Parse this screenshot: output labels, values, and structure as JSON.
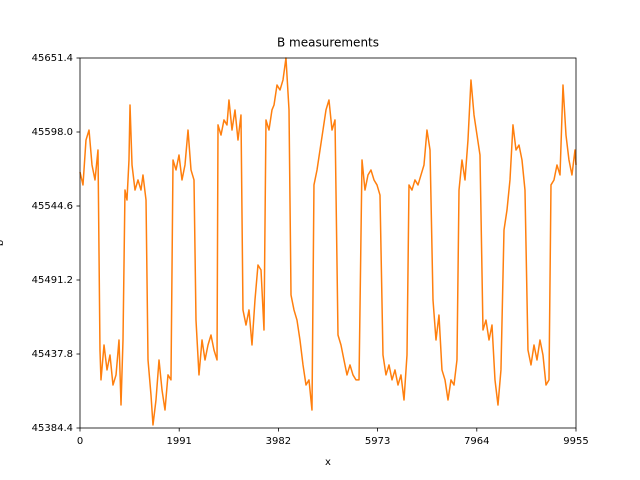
{
  "chart_data": {
    "type": "line",
    "title": "B measurements",
    "x_label": "x",
    "y_label": "b",
    "xlim": [
      0,
      9955
    ],
    "xticks": [
      0,
      1991,
      3982,
      5973,
      7964,
      9955
    ],
    "ylim": [
      45384.4,
      45651.4
    ],
    "yticks": [
      45384.4,
      45437.8,
      45491.2,
      45544.6,
      {
        "value": 45598,
        "label": "45598.0"
      },
      45651.4
    ],
    "color": "#ff7f0e",
    "x": [
      0,
      60,
      120,
      181,
      241,
      301,
      361,
      401,
      421,
      482,
      542,
      602,
      662,
      723,
      783,
      823,
      863,
      903,
      943,
      983,
      1004,
      1044,
      1104,
      1164,
      1224,
      1264,
      1325,
      1365,
      1425,
      1465,
      1525,
      1586,
      1646,
      1706,
      1766,
      1826,
      1867,
      1927,
      1987,
      2047,
      2107,
      2168,
      2228,
      2288,
      2328,
      2388,
      2449,
      2509,
      2569,
      2629,
      2689,
      2750,
      2770,
      2830,
      2890,
      2950,
      2990,
      3051,
      3111,
      3171,
      3231,
      3271,
      3332,
      3392,
      3452,
      3512,
      3572,
      3633,
      3693,
      3733,
      3793,
      3853,
      3894,
      3954,
      4014,
      4074,
      4134,
      4195,
      4235,
      4295,
      4355,
      4415,
      4476,
      4536,
      4596,
      4656,
      4696,
      4757,
      4817,
      4877,
      4937,
      4997,
      5058,
      5118,
      5178,
      5238,
      5298,
      5359,
      5419,
      5479,
      5539,
      5600,
      5660,
      5720,
      5780,
      5840,
      5901,
      5961,
      6021,
      6081,
      6141,
      6202,
      6262,
      6322,
      6382,
      6442,
      6503,
      6563,
      6603,
      6663,
      6723,
      6784,
      6844,
      6904,
      6964,
      7025,
      7085,
      7145,
      7205,
      7265,
      7326,
      7386,
      7446,
      7506,
      7566,
      7607,
      7667,
      7727,
      7787,
      7847,
      7908,
      7968,
      8028,
      8088,
      8148,
      8209,
      8269,
      8329,
      8389,
      8449,
      8510,
      8570,
      8630,
      8690,
      8751,
      8811,
      8871,
      8931,
      8991,
      9052,
      9112,
      9172,
      9232,
      9292,
      9353,
      9413,
      9453,
      9513,
      9573,
      9634,
      9694,
      9754,
      9814,
      9874,
      9935,
      9955
    ],
    "values": [
      45569.1,
      45559.8,
      45592.2,
      45599.4,
      45574.2,
      45563.4,
      45585.0,
      45440.7,
      45419.1,
      45444.3,
      45426.3,
      45437.1,
      45415.4,
      45422.7,
      45447.9,
      45401.0,
      45447.9,
      45556.1,
      45548.9,
      45577.8,
      45617.5,
      45574.2,
      45556.1,
      45563.4,
      45556.1,
      45567.0,
      45548.9,
      45433.5,
      45408.2,
      45386.6,
      45404.6,
      45433.5,
      45411.8,
      45397.4,
      45422.7,
      45419.1,
      45577.8,
      45570.6,
      45581.4,
      45563.4,
      45574.2,
      45599.4,
      45570.6,
      45563.4,
      45462.3,
      45422.7,
      45447.9,
      45433.5,
      45444.3,
      45451.5,
      45440.7,
      45433.5,
      45603.1,
      45595.8,
      45606.7,
      45603.1,
      45621.1,
      45599.4,
      45613.9,
      45592.2,
      45610.3,
      45469.6,
      45458.7,
      45469.6,
      45444.3,
      45476.8,
      45502.0,
      45498.4,
      45455.1,
      45606.7,
      45599.4,
      45613.9,
      45617.5,
      45631.9,
      45628.3,
      45635.5,
      45651.4,
      45613.9,
      45480.4,
      45469.6,
      45462.3,
      45447.9,
      45429.9,
      45415.4,
      45419.1,
      45397.4,
      45559.8,
      45570.6,
      45585.0,
      45599.4,
      45613.9,
      45621.1,
      45599.4,
      45606.7,
      45451.5,
      45444.3,
      45433.5,
      45422.7,
      45429.9,
      45422.7,
      45419.1,
      45419.1,
      45577.8,
      45556.1,
      45567.0,
      45570.6,
      45563.4,
      45559.8,
      45552.5,
      45437.1,
      45422.7,
      45429.9,
      45419.1,
      45426.3,
      45415.4,
      45422.7,
      45404.6,
      45437.1,
      45559.8,
      45556.1,
      45563.4,
      45559.8,
      45567.0,
      45574.2,
      45599.4,
      45585.0,
      45476.8,
      45447.9,
      45465.9,
      45426.3,
      45419.1,
      45404.6,
      45419.1,
      45415.4,
      45433.5,
      45556.1,
      45577.8,
      45563.4,
      45592.2,
      45635.5,
      45610.3,
      45595.8,
      45581.4,
      45455.1,
      45462.3,
      45447.9,
      45458.7,
      45419.1,
      45401.0,
      45426.3,
      45527.3,
      45541.7,
      45563.4,
      45603.1,
      45585.0,
      45588.6,
      45577.8,
      45556.1,
      45440.7,
      45429.9,
      45444.3,
      45433.5,
      45447.9,
      45437.1,
      45415.4,
      45419.1,
      45559.8,
      45563.4,
      45574.2,
      45567.0,
      45631.9,
      45595.8,
      45577.8,
      45567.0,
      45585.0,
      45574.2
    ]
  }
}
